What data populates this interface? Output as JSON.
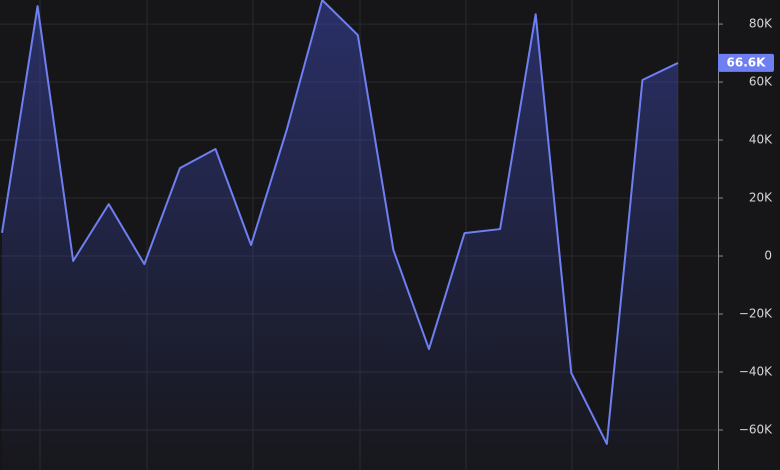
{
  "chart_data": {
    "type": "area",
    "categories": [
      null,
      null,
      null,
      null,
      null,
      null,
      null,
      null,
      null,
      null,
      null,
      null,
      null,
      null,
      null,
      null,
      null,
      null,
      null,
      null
    ],
    "series": [
      {
        "color": "#6e7ff2",
        "values": [
          8000,
          86200,
          -1700,
          17900,
          -2800,
          30300,
          36900,
          3800,
          43400,
          88300,
          76200,
          2100,
          -32100,
          7900,
          9300,
          83400,
          -40300,
          -64800,
          60700,
          66600
        ]
      }
    ],
    "last_value_label": "66.6K",
    "ylim": [
      -73800,
      88300
    ],
    "yticks": [
      {
        "value": -60000,
        "label": "−60K"
      },
      {
        "value": -40000,
        "label": "−40K"
      },
      {
        "value": -20000,
        "label": "−20K"
      },
      0,
      {
        "value": 20000,
        "label": "20K"
      },
      {
        "value": 40000,
        "label": "40K"
      },
      {
        "value": 60000,
        "label": "60K"
      },
      {
        "value": 80000,
        "label": "80K"
      }
    ],
    "grid": true
  }
}
